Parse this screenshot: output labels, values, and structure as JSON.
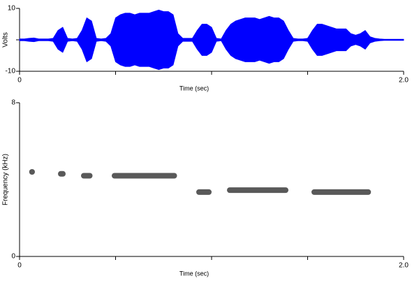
{
  "chart_data": [
    {
      "type": "waveform",
      "ylabel": "Volts",
      "xlabel": "Time (sec)",
      "color": "#0000ff",
      "xlim": [
        0,
        2
      ],
      "ylim": [
        -10,
        10
      ],
      "xticks": [
        0,
        {
          "value": 2,
          "label": "2.0"
        }
      ],
      "xminor_ticks": [
        0.5,
        1,
        1.5
      ],
      "yticks": [
        -10,
        10
      ],
      "yminor_ticks": [
        0
      ],
      "series": [
        {
          "name": "amplitude",
          "x": [
            0,
            0.025,
            0.05,
            0.075,
            0.1,
            0.125,
            0.15,
            0.175,
            0.2,
            0.225,
            0.25,
            0.275,
            0.3,
            0.325,
            0.35,
            0.375,
            0.4,
            0.425,
            0.45,
            0.475,
            0.5,
            0.525,
            0.55,
            0.575,
            0.6,
            0.625,
            0.65,
            0.675,
            0.7,
            0.725,
            0.75,
            0.775,
            0.8,
            0.825,
            0.85,
            0.875,
            0.9,
            0.925,
            0.95,
            0.975,
            1.0,
            1.025,
            1.05,
            1.075,
            1.1,
            1.125,
            1.15,
            1.175,
            1.2,
            1.225,
            1.25,
            1.275,
            1.3,
            1.325,
            1.35,
            1.375,
            1.4,
            1.425,
            1.45,
            1.475,
            1.5,
            1.525,
            1.55,
            1.575,
            1.6,
            1.625,
            1.65,
            1.675,
            1.7,
            1.725,
            1.75,
            1.775,
            1.8,
            1.825,
            1.85,
            1.875,
            1.9,
            1.925,
            1.95,
            1.975,
            2.0
          ],
          "values": [
            0.3,
            0.3,
            0.5,
            0.6,
            0.3,
            0.3,
            0.3,
            0.5,
            3,
            4,
            0.5,
            0.3,
            0.5,
            3,
            7,
            6,
            0.5,
            0.3,
            0.5,
            2,
            7,
            8,
            8.5,
            8.5,
            8,
            8.5,
            8.5,
            8.5,
            9,
            9.5,
            9,
            9,
            8,
            2,
            0.5,
            0.5,
            0.5,
            3,
            5,
            5,
            4,
            0.5,
            0.3,
            3,
            5,
            6,
            6.5,
            7,
            7,
            7,
            6.5,
            7,
            7.5,
            7,
            7,
            6,
            3,
            0.5,
            0.3,
            0.3,
            0.5,
            3,
            5,
            5,
            4.5,
            4,
            3.5,
            3.5,
            3.5,
            2,
            1.5,
            2,
            3,
            1,
            0.5,
            0.3,
            0.2,
            0.2,
            0.2,
            0.2,
            0.2
          ]
        }
      ]
    },
    {
      "type": "spectrogram",
      "ylabel": "Frequency (kHz)",
      "xlabel": "Time (sec)",
      "color": "#222222",
      "xlim": [
        0,
        2
      ],
      "ylim": [
        0,
        8
      ],
      "xticks": [
        0,
        {
          "value": 2,
          "label": "2.0"
        }
      ],
      "xminor_ticks": [
        0.5,
        1,
        1.5
      ],
      "yticks": [
        0,
        8
      ],
      "segments": [
        {
          "start": 0.05,
          "end": 0.08,
          "freq": 4.4
        },
        {
          "start": 0.2,
          "end": 0.24,
          "freq": 4.3
        },
        {
          "start": 0.32,
          "end": 0.38,
          "freq": 4.2
        },
        {
          "start": 0.48,
          "end": 0.82,
          "freq": 4.2
        },
        {
          "start": 0.92,
          "end": 1.0,
          "freq": 3.35
        },
        {
          "start": 1.08,
          "end": 1.4,
          "freq": 3.45
        },
        {
          "start": 1.52,
          "end": 1.83,
          "freq": 3.35
        }
      ]
    }
  ]
}
